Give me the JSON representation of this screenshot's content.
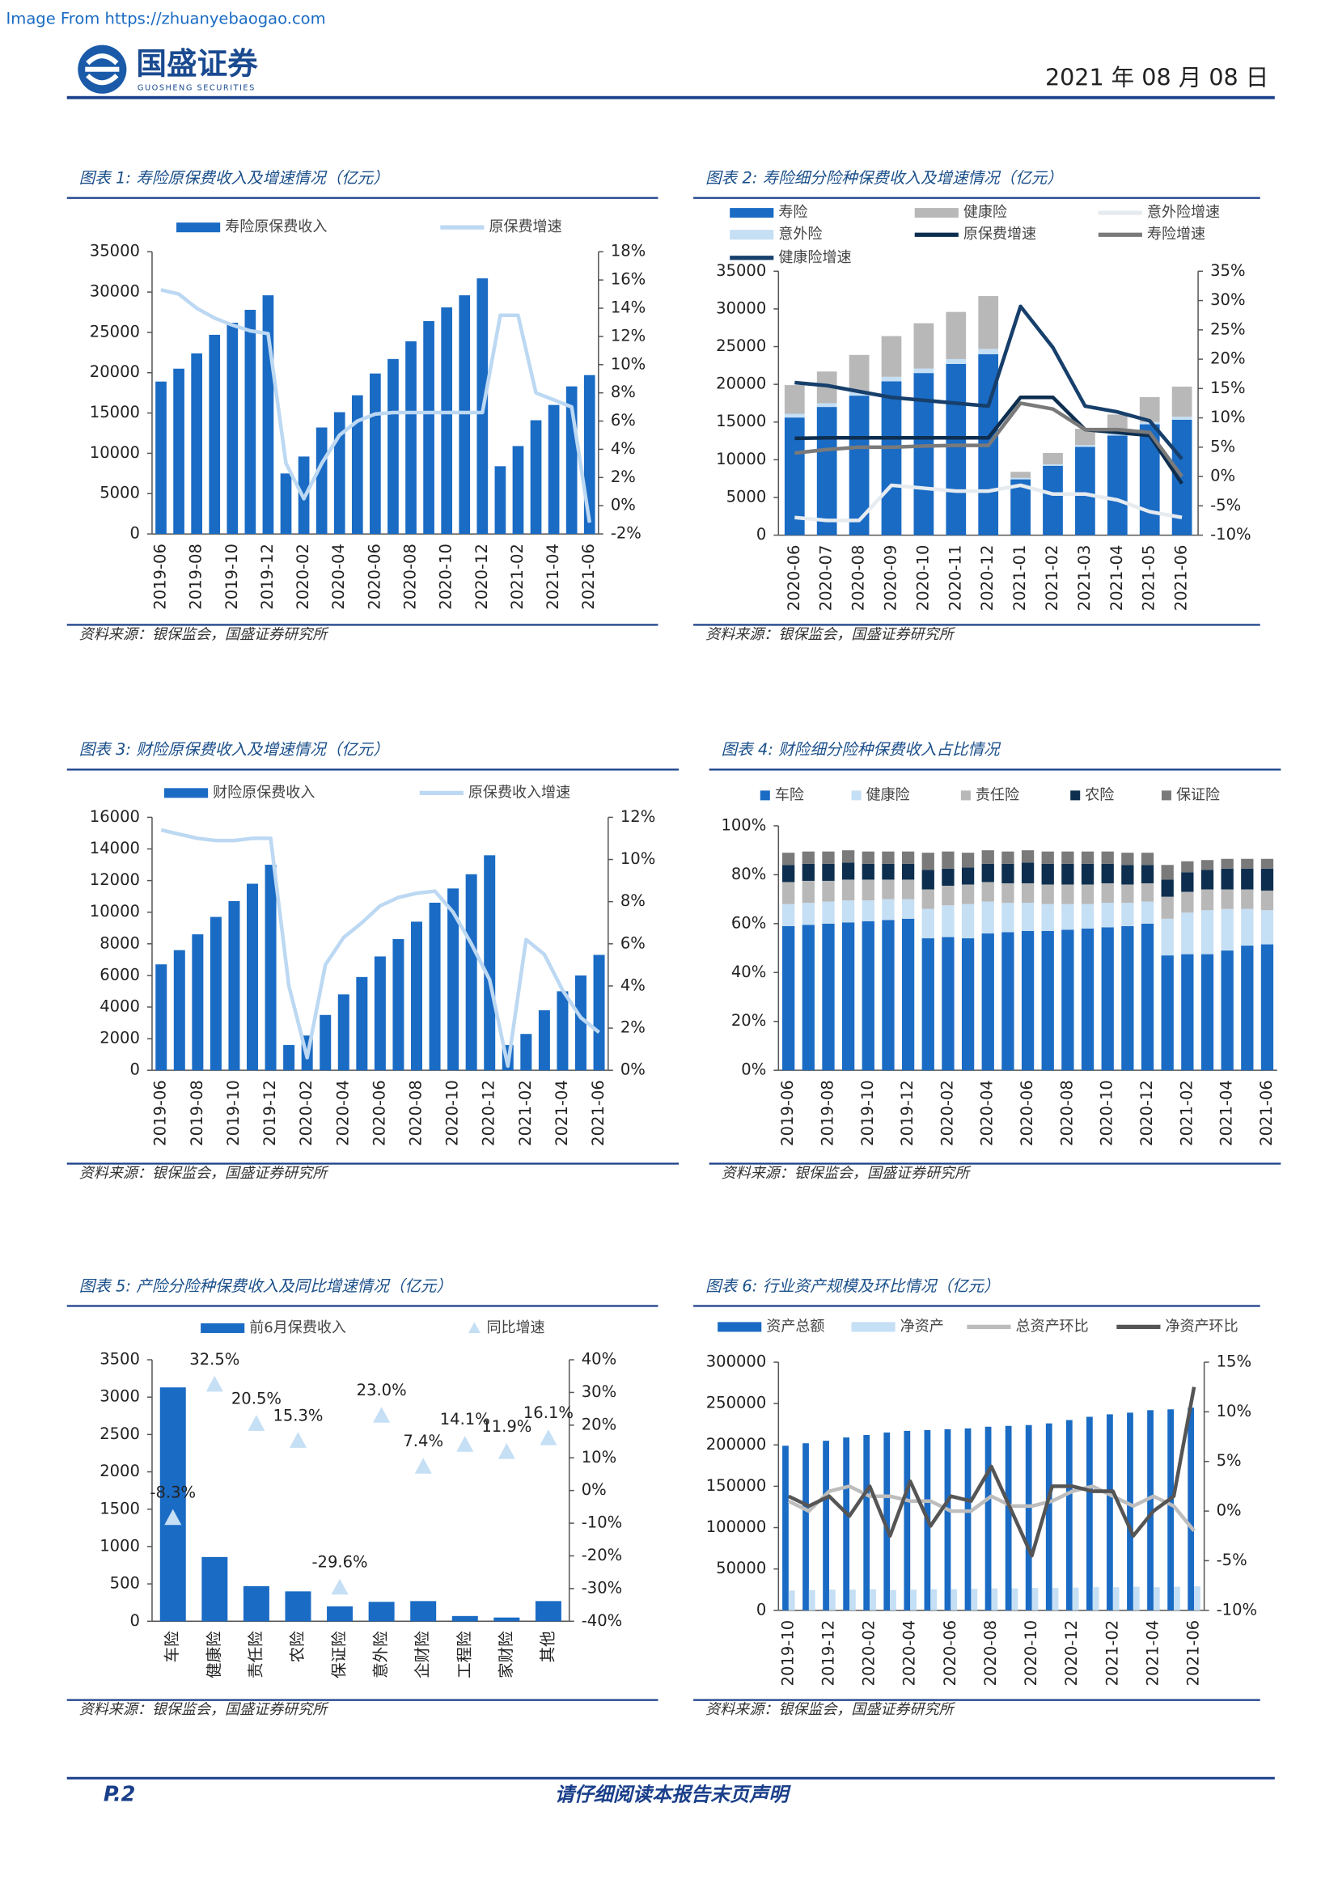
{
  "header": {
    "watermark": "Image From https://zhuanyebaogao.com",
    "company": "国盛证券",
    "company_en": "GUOSHENG SECURITIES",
    "date": "2021 年 08 月 08 日"
  },
  "footer": {
    "page": "P.2",
    "disclaimer": "请仔细阅读本报告末页声明"
  },
  "chart_data": [
    {
      "type": "combo",
      "title": "图表 1:  寿险原保费收入及增速情况（亿元）",
      "source": "资料来源：银保监会，国盛证券研究所",
      "categories": [
        "2019-06",
        null,
        "2019-08",
        null,
        "2019-10",
        null,
        "2019-12",
        null,
        "2020-02",
        null,
        "2020-04",
        null,
        "2020-06",
        null,
        "2020-08",
        null,
        "2020-10",
        null,
        "2020-12",
        null,
        "2021-02",
        null,
        "2021-04",
        null,
        "2021-06"
      ],
      "series": [
        {
          "name": "寿险原保费收入",
          "mark": "bar",
          "color": "#1a6bc4",
          "values": [
            18900,
            20500,
            22400,
            24700,
            26200,
            27800,
            29600,
            7500,
            9600,
            13200,
            15100,
            17200,
            19900,
            21700,
            23900,
            26400,
            28100,
            29600,
            31700,
            8400,
            10900,
            14100,
            16000,
            18300,
            19700
          ]
        },
        {
          "name": "原保费增速",
          "mark": "line",
          "axis": "y2",
          "color": "#bcd8f2",
          "values": [
            15.3,
            15,
            14,
            13.3,
            12.8,
            12.4,
            12.2,
            3,
            0.5,
            3,
            5,
            6,
            6.5,
            6.6,
            6.6,
            6.6,
            6.6,
            6.6,
            6.6,
            13.5,
            13.5,
            8,
            7.5,
            7,
            -1.2
          ]
        }
      ],
      "ylim": [
        0,
        35000
      ],
      "yticks": [
        0,
        5000,
        10000,
        15000,
        20000,
        25000,
        30000,
        35000
      ],
      "y2lim": [
        -2,
        18
      ],
      "y2ticks": [
        {
          "value": -2,
          "label": "-2%"
        },
        {
          "value": 0,
          "label": "0%"
        },
        {
          "value": 2,
          "label": "2%"
        },
        {
          "value": 4,
          "label": "4%"
        },
        {
          "value": 6,
          "label": "6%"
        },
        {
          "value": 8,
          "label": "8%"
        },
        {
          "value": 10,
          "label": "10%"
        },
        {
          "value": 12,
          "label": "12%"
        },
        {
          "value": 14,
          "label": "14%"
        },
        {
          "value": 16,
          "label": "16%"
        },
        {
          "value": 18,
          "label": "18%"
        }
      ]
    },
    {
      "type": "combo",
      "title": "图表 2:  寿险细分险种保费收入及增速情况（亿元）",
      "source": "资料来源：银保监会，国盛证券研究所",
      "stacked": true,
      "categories": [
        "2020-06",
        "2020-07",
        "2020-08",
        "2020-09",
        "2020-10",
        "2020-11",
        "2020-12",
        "2021-01",
        "2021-02",
        "2021-03",
        "2021-04",
        "2021-05",
        "2021-06"
      ],
      "series": [
        {
          "name": "寿险",
          "mark": "bar",
          "color": "#1a6bc4",
          "values": [
            15600,
            17000,
            18500,
            20400,
            21500,
            22700,
            24000,
            7400,
            9200,
            11700,
            13200,
            14700,
            15300
          ]
        },
        {
          "name": "意外险",
          "mark": "bar",
          "color": "#c5dff5",
          "values": [
            500,
            500,
            550,
            600,
            600,
            650,
            700,
            200,
            200,
            250,
            300,
            300,
            400
          ]
        },
        {
          "name": "健康险",
          "mark": "bar",
          "color": "#b8b8b8",
          "values": [
            3800,
            4200,
            4850,
            5400,
            6000,
            6250,
            7000,
            800,
            1500,
            2150,
            2500,
            3300,
            4000
          ]
        },
        {
          "name": "原保费增速",
          "mark": "line",
          "axis": "y2",
          "color": "#0d2e4f",
          "values": [
            6.5,
            6.6,
            6.6,
            6.6,
            6.6,
            6.6,
            6.6,
            13.5,
            13.5,
            8,
            7.5,
            7,
            -1.2
          ]
        },
        {
          "name": "寿险增速",
          "mark": "line",
          "axis": "y2",
          "color": "#7a7a7a",
          "values": [
            4,
            4.6,
            5,
            5,
            5.2,
            5.3,
            5.3,
            12.5,
            11.5,
            8,
            8,
            7.5,
            0
          ]
        },
        {
          "name": "意外险增速",
          "mark": "line",
          "axis": "y2",
          "color": "#e6ebf0",
          "values": [
            -7,
            -7.5,
            -7.5,
            -1.5,
            -2,
            -2.5,
            -2.5,
            -1.5,
            -3,
            -3,
            -4,
            -6,
            -7
          ]
        },
        {
          "name": "健康险增速",
          "mark": "line",
          "axis": "y2",
          "color": "#173f6b",
          "values": [
            16,
            15.5,
            14.5,
            13.5,
            13,
            12.5,
            12,
            29,
            22,
            12,
            11,
            9.5,
            3
          ]
        }
      ],
      "ylim": [
        0,
        35000
      ],
      "yticks": [
        0,
        5000,
        10000,
        15000,
        20000,
        25000,
        30000,
        35000
      ],
      "y2lim": [
        -10,
        35
      ],
      "y2ticks": [
        {
          "value": -10,
          "label": "-10%"
        },
        {
          "value": -5,
          "label": "-5%"
        },
        {
          "value": 0,
          "label": "0%"
        },
        {
          "value": 5,
          "label": "5%"
        },
        {
          "value": 10,
          "label": "10%"
        },
        {
          "value": 15,
          "label": "15%"
        },
        {
          "value": 20,
          "label": "20%"
        },
        {
          "value": 25,
          "label": "25%"
        },
        {
          "value": 30,
          "label": "30%"
        },
        {
          "value": 35,
          "label": "35%"
        }
      ]
    },
    {
      "type": "combo",
      "title": "图表 3:  财险原保费收入及增速情况（亿元）",
      "source": "资料来源：银保监会，国盛证券研究所",
      "categories": [
        "2019-06",
        null,
        "2019-08",
        null,
        "2019-10",
        null,
        "2019-12",
        null,
        "2020-02",
        null,
        "2020-04",
        null,
        "2020-06",
        null,
        "2020-08",
        null,
        "2020-10",
        null,
        "2020-12",
        null,
        "2021-02",
        null,
        "2021-04",
        null,
        "2021-06"
      ],
      "series": [
        {
          "name": "财险原保费收入",
          "mark": "bar",
          "color": "#1a6bc4",
          "values": [
            6700,
            7600,
            8600,
            9700,
            10700,
            11800,
            13000,
            1600,
            2200,
            3500,
            4800,
            5900,
            7200,
            8300,
            9400,
            10600,
            11500,
            12400,
            13600,
            1600,
            2300,
            3800,
            5000,
            6000,
            7300
          ]
        },
        {
          "name": "原保费收入增速",
          "mark": "line",
          "axis": "y2",
          "color": "#bcd8f2",
          "values": [
            11.4,
            11.2,
            11,
            10.9,
            10.9,
            11,
            11,
            4,
            0.6,
            5,
            6.3,
            7,
            7.8,
            8.2,
            8.4,
            8.5,
            7.5,
            6,
            4.3,
            0.2,
            6.2,
            5.5,
            3.8,
            2.5,
            1.8
          ]
        }
      ],
      "ylim": [
        0,
        16000
      ],
      "yticks": [
        0,
        2000,
        4000,
        6000,
        8000,
        10000,
        12000,
        14000,
        16000
      ],
      "y2lim": [
        0,
        12
      ],
      "y2ticks": [
        {
          "value": 0,
          "label": "0%"
        },
        {
          "value": 2,
          "label": "2%"
        },
        {
          "value": 4,
          "label": "4%"
        },
        {
          "value": 6,
          "label": "6%"
        },
        {
          "value": 8,
          "label": "8%"
        },
        {
          "value": 10,
          "label": "10%"
        },
        {
          "value": 12,
          "label": "12%"
        }
      ]
    },
    {
      "type": "combo",
      "title": "图表 4:  财险细分险种保费收入占比情况",
      "source": "资料来源：银保监会，国盛证券研究所",
      "stacked": true,
      "legend_style": "square",
      "categories": [
        "2019-06",
        null,
        "2019-08",
        null,
        "2019-10",
        null,
        "2019-12",
        null,
        "2020-02",
        null,
        "2020-04",
        null,
        "2020-06",
        null,
        "2020-08",
        null,
        "2020-10",
        null,
        "2020-12",
        null,
        "2021-02",
        null,
        "2021-04",
        null,
        "2021-06"
      ],
      "series": [
        {
          "name": "车险",
          "mark": "bar",
          "color": "#1a6bc4",
          "values": [
            59,
            59.5,
            60,
            60.5,
            61,
            61.5,
            62,
            54,
            54.5,
            54,
            56,
            56.5,
            57,
            57,
            57.5,
            58,
            58.5,
            59,
            60,
            47,
            47.5,
            47.5,
            49,
            51,
            51.5
          ]
        },
        {
          "name": "健康险",
          "mark": "bar",
          "color": "#c5dff5",
          "values": [
            9,
            9,
            9,
            9,
            8.5,
            8.5,
            8,
            12,
            13,
            14,
            13,
            12,
            11.5,
            11,
            10.5,
            10,
            10,
            9.5,
            9,
            15,
            17,
            18,
            17,
            15,
            14
          ]
        },
        {
          "name": "责任险",
          "mark": "bar",
          "color": "#b8b8b8",
          "values": [
            9,
            9,
            8.5,
            8.5,
            8.5,
            8,
            8,
            8,
            8,
            8,
            8,
            8,
            8,
            8,
            8,
            8,
            8,
            7.5,
            7.5,
            9,
            8.5,
            8.5,
            8,
            8,
            8
          ]
        },
        {
          "name": "农险",
          "mark": "bar",
          "color": "#0d2e4f",
          "values": [
            7,
            7,
            7,
            7,
            6.5,
            6.5,
            6.5,
            8,
            7,
            7,
            7.5,
            8,
            8.5,
            8.5,
            8.5,
            8.5,
            8,
            8,
            7.5,
            7,
            8,
            8,
            8.5,
            8.5,
            9
          ]
        },
        {
          "name": "保证险",
          "mark": "bar",
          "color": "#7a7a7a",
          "values": [
            5,
            5,
            5,
            5,
            5,
            5,
            5,
            7,
            7,
            6,
            5.5,
            5,
            5,
            5,
            5,
            5,
            5,
            5,
            5,
            6,
            4.5,
            4,
            4,
            4,
            4
          ]
        }
      ],
      "ylim": [
        0,
        100
      ],
      "yticks": [
        {
          "value": 0,
          "label": "0%"
        },
        {
          "value": 20,
          "label": "20%"
        },
        {
          "value": 40,
          "label": "40%"
        },
        {
          "value": 60,
          "label": "60%"
        },
        {
          "value": 80,
          "label": "80%"
        },
        {
          "value": 100,
          "label": "100%"
        }
      ]
    },
    {
      "type": "combo",
      "title": "图表 5:  产险分险种保费收入及同比增速情况（亿元）",
      "source": "资料来源：银保监会，国盛证券研究所",
      "categories": [
        "车险",
        "健康险",
        "责任险",
        "农险",
        "保证险",
        "意外险",
        "企财险",
        "工程险",
        "家财险",
        "其他"
      ],
      "series": [
        {
          "name": "前6月保费收入",
          "mark": "bar",
          "color": "#1a6bc4",
          "values": [
            3130,
            860,
            470,
            400,
            200,
            260,
            270,
            70,
            50,
            270
          ]
        },
        {
          "name": "同比增速",
          "mark": "triangle",
          "axis": "y2",
          "color": "#c5dff5",
          "values": [
            -8.3,
            32.5,
            20.5,
            15.3,
            -29.6,
            23.0,
            7.4,
            14.1,
            11.9,
            16.1
          ],
          "value_labels": [
            "-8.3%",
            "32.5%",
            "20.5%",
            "15.3%",
            "-29.6%",
            "23.0%",
            "7.4%",
            "14.1%",
            "11.9%",
            "16.1%"
          ]
        }
      ],
      "ylim": [
        0,
        3500
      ],
      "yticks": [
        0,
        500,
        1000,
        1500,
        2000,
        2500,
        3000,
        3500
      ],
      "y2lim": [
        -40,
        40
      ],
      "y2ticks": [
        {
          "value": -40,
          "label": "-40%"
        },
        {
          "value": -30,
          "label": "-30%"
        },
        {
          "value": -20,
          "label": "-20%"
        },
        {
          "value": -10,
          "label": "-10%"
        },
        {
          "value": 0,
          "label": "0%"
        },
        {
          "value": 10,
          "label": "10%"
        },
        {
          "value": 20,
          "label": "20%"
        },
        {
          "value": 30,
          "label": "30%"
        },
        {
          "value": 40,
          "label": "40%"
        }
      ]
    },
    {
      "type": "combo",
      "title": "图表 6:  行业资产规模及环比情况（亿元）",
      "source": "资料来源：银保监会，国盛证券研究所",
      "categories": [
        "2019-10",
        null,
        "2019-12",
        null,
        "2020-02",
        null,
        "2020-04",
        null,
        "2020-06",
        null,
        "2020-08",
        null,
        "2020-10",
        null,
        "2020-12",
        null,
        "2021-02",
        null,
        "2021-04",
        null,
        "2021-06"
      ],
      "series": [
        {
          "name": "资产总额",
          "mark": "bar",
          "color": "#1a6bc4",
          "values": [
            199000,
            202000,
            205000,
            209000,
            212000,
            215000,
            217000,
            218000,
            219000,
            220000,
            222000,
            223000,
            224000,
            226000,
            230000,
            234000,
            237000,
            239000,
            242000,
            243000,
            245000
          ]
        },
        {
          "name": "净资产",
          "mark": "bar",
          "color": "#c5dff5",
          "values": [
            24000,
            24500,
            25000,
            25000,
            25500,
            24500,
            25000,
            25500,
            25500,
            26000,
            26500,
            26500,
            27000,
            27000,
            27500,
            28000,
            28000,
            28500,
            28000,
            28500,
            29000
          ]
        },
        {
          "name": "总资产环比",
          "mark": "line",
          "axis": "y2",
          "color": "#bdbdbd",
          "values": [
            1,
            0,
            2,
            2.5,
            1.5,
            1.5,
            1,
            1,
            0,
            0,
            1.5,
            0.5,
            0.5,
            1,
            2,
            2.5,
            1.5,
            0.5,
            1.5,
            0.5,
            -2
          ]
        },
        {
          "name": "净资产环比",
          "mark": "line",
          "axis": "y2",
          "color": "#555555",
          "values": [
            1.5,
            0.5,
            1.5,
            -0.5,
            2.5,
            -2.5,
            3,
            -1.5,
            1.5,
            1,
            4.5,
            0,
            -4.5,
            2.5,
            2.5,
            2,
            2,
            -2.5,
            0,
            1.5,
            12.5
          ]
        }
      ],
      "ylim": [
        0,
        300000
      ],
      "yticks": [
        0,
        50000,
        100000,
        150000,
        200000,
        250000,
        300000
      ],
      "y2lim": [
        -10,
        15
      ],
      "y2ticks": [
        {
          "value": -10,
          "label": "-10%"
        },
        {
          "value": -5,
          "label": "-5%"
        },
        {
          "value": 0,
          "label": "0%"
        },
        {
          "value": 5,
          "label": "5%"
        },
        {
          "value": 10,
          "label": "10%"
        },
        {
          "value": 15,
          "label": "15%"
        }
      ]
    }
  ]
}
